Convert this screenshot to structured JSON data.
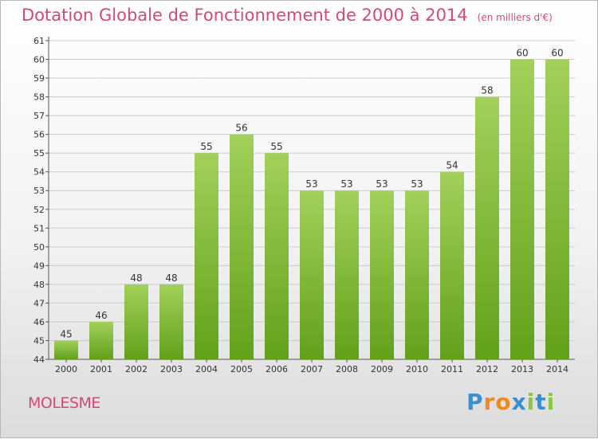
{
  "chart_data": {
    "type": "bar",
    "title": "Dotation Globale de Fonctionnement de 2000 à 2014",
    "subtitle": "(en milliers d'€)",
    "categories": [
      "2000",
      "2001",
      "2002",
      "2003",
      "2004",
      "2005",
      "2006",
      "2007",
      "2008",
      "2009",
      "2010",
      "2011",
      "2012",
      "2013",
      "2014"
    ],
    "values": [
      45,
      46,
      48,
      48,
      55,
      56,
      55,
      53,
      53,
      53,
      53,
      54,
      58,
      60,
      60
    ],
    "ylim": [
      44,
      61
    ],
    "yticks": [
      44,
      45,
      46,
      47,
      48,
      49,
      50,
      51,
      52,
      53,
      54,
      55,
      56,
      57,
      58,
      59,
      60,
      61
    ],
    "xlabel": "",
    "ylabel": "",
    "grid": true,
    "colors": {
      "bar_top": "#a3d05a",
      "bar_bottom": "#62a11a",
      "grid": "#cccccc",
      "title": "#d24a74"
    }
  },
  "commune": "MOLESME",
  "brand": {
    "letters": [
      "P",
      "r",
      "o",
      "x",
      "i",
      "t",
      "i"
    ],
    "colors": [
      "#3a8fd0",
      "#f08a1c",
      "#f08a1c",
      "#3a8fd0",
      "#8cc63f",
      "#3a8fd0",
      "#8cc63f"
    ]
  }
}
